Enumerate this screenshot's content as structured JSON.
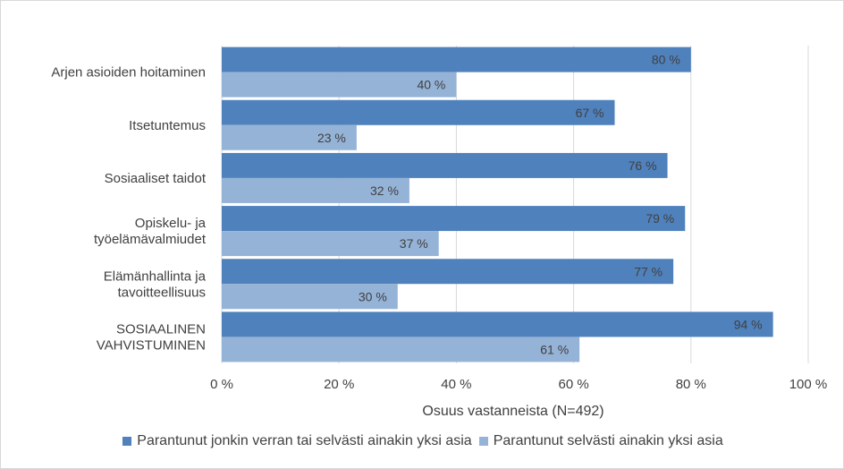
{
  "chart_data": {
    "type": "bar",
    "orientation": "horizontal",
    "categories": [
      [
        "Arjen asioiden hoitaminen"
      ],
      [
        "Itsetuntemus"
      ],
      [
        "Sosiaaliset taidot"
      ],
      [
        "Opiskelu- ja",
        "työelämävalmiudet"
      ],
      [
        "Elämänhallinta ja",
        "tavoitteellisuus"
      ],
      [
        "SOSIAALINEN",
        "VAHVISTUMINEN"
      ]
    ],
    "series": [
      {
        "name": "Parantunut jonkin verran tai selvästi ainakin yksi asia",
        "color": "#4f81bd",
        "values": [
          80,
          67,
          76,
          79,
          77,
          94
        ],
        "labels": [
          "80 %",
          "67 %",
          "76 %",
          "79 %",
          "77 %",
          "94 %"
        ]
      },
      {
        "name": "Parantunut selvästi ainakin yksi asia",
        "color": "#95b3d7",
        "values": [
          40,
          23,
          32,
          37,
          30,
          61
        ],
        "labels": [
          "40 %",
          "23 %",
          "32 %",
          "37 %",
          "30 %",
          "61 %"
        ]
      }
    ],
    "xlim": [
      0,
      100
    ],
    "xticks": [
      "0 %",
      "20 %",
      "40 %",
      "60 %",
      "80 %",
      "100 %"
    ],
    "xlabel": "Osuus vastanneista (N=492)",
    "ylabel": "",
    "title": "",
    "grid": true,
    "gridline_color": "#d9d9d9",
    "legend_position": "bottom"
  }
}
